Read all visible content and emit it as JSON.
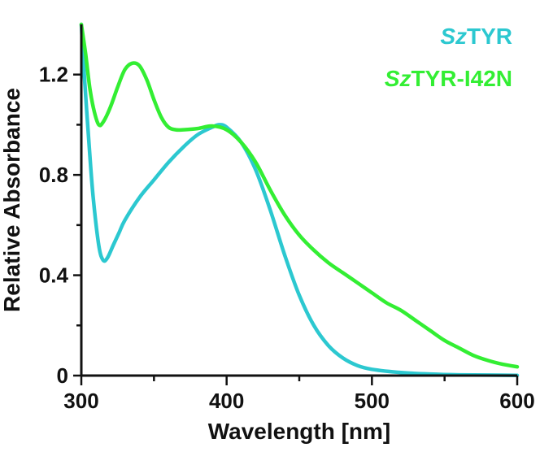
{
  "chart_data": {
    "type": "line",
    "xlabel": "Wavelength [nm]",
    "ylabel": "Relative Absorbance",
    "xlim": [
      300,
      600
    ],
    "ylim": [
      0,
      1.4
    ],
    "x_ticks_major": [
      300,
      400,
      500,
      600
    ],
    "x_tick_labels": [
      "300",
      "400",
      "500",
      "600"
    ],
    "x_ticks_minor": [
      350,
      450,
      550
    ],
    "y_ticks_major": [
      0,
      0.4,
      0.8,
      1.2
    ],
    "y_tick_labels": [
      "0",
      "0.4",
      "0.8",
      "1.2"
    ],
    "y_ticks_minor": [
      0.2,
      0.6,
      1.0
    ],
    "grid": false,
    "legend_position": "top-right",
    "series": [
      {
        "name": "SzTYR",
        "name_italic": "Sz",
        "name_rest": "TYR",
        "color": "#2cc8d0",
        "x": [
          300,
          302,
          305,
          308,
          312,
          315,
          318,
          322,
          326,
          330,
          340,
          350,
          360,
          370,
          380,
          390,
          395,
          400,
          410,
          420,
          430,
          440,
          450,
          460,
          470,
          480,
          490,
          500,
          520,
          540,
          560,
          580,
          600
        ],
        "y": [
          1.4,
          1.2,
          0.95,
          0.72,
          0.52,
          0.46,
          0.47,
          0.52,
          0.57,
          0.62,
          0.71,
          0.78,
          0.85,
          0.91,
          0.96,
          0.99,
          1.0,
          0.99,
          0.93,
          0.82,
          0.66,
          0.48,
          0.32,
          0.2,
          0.12,
          0.07,
          0.04,
          0.025,
          0.012,
          0.006,
          0.003,
          0.002,
          0.001
        ]
      },
      {
        "name": "SzTYR-I42N",
        "name_italic": "Sz",
        "name_rest": "TYR-I42N",
        "color": "#33ee33",
        "x": [
          300,
          303,
          306,
          309,
          312,
          315,
          320,
          325,
          330,
          335,
          340,
          345,
          350,
          355,
          360,
          365,
          370,
          380,
          390,
          400,
          410,
          420,
          430,
          440,
          450,
          460,
          470,
          480,
          490,
          500,
          510,
          520,
          530,
          540,
          550,
          560,
          570,
          580,
          590,
          600
        ],
        "y": [
          1.4,
          1.28,
          1.14,
          1.05,
          1.0,
          1.01,
          1.07,
          1.15,
          1.22,
          1.245,
          1.235,
          1.18,
          1.1,
          1.03,
          0.99,
          0.98,
          0.98,
          0.985,
          0.995,
          0.98,
          0.93,
          0.85,
          0.74,
          0.64,
          0.56,
          0.5,
          0.45,
          0.41,
          0.37,
          0.33,
          0.29,
          0.26,
          0.22,
          0.18,
          0.14,
          0.11,
          0.08,
          0.06,
          0.045,
          0.035
        ]
      }
    ]
  }
}
